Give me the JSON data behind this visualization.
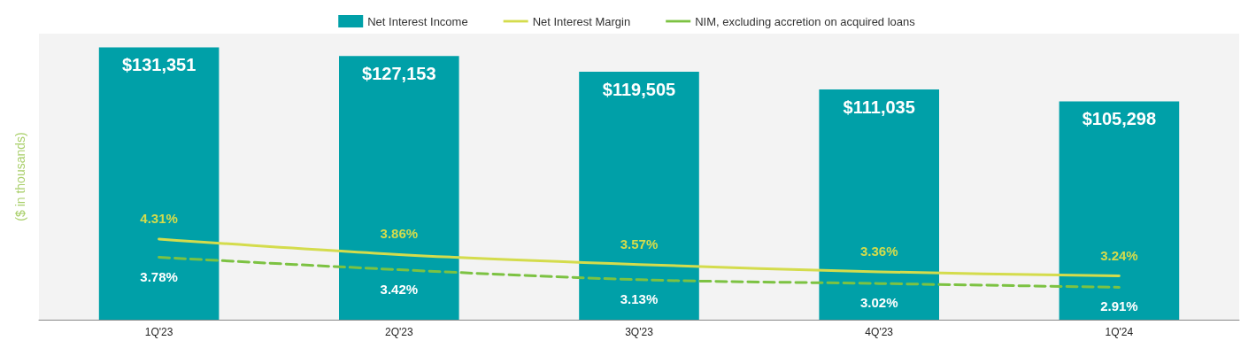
{
  "chart_data": {
    "type": "bar",
    "ylabel": "($ in thousands)",
    "categories": [
      "1Q'23",
      "2Q'23",
      "3Q'23",
      "4Q'23",
      "1Q'24"
    ],
    "series": [
      {
        "name": "Net Interest Income",
        "color": "#00a0a8",
        "values": [
          131351,
          127153,
          119505,
          111035,
          105298
        ],
        "value_labels": [
          "$131,351",
          "$127,153",
          "$119,505",
          "$111,035",
          "$105,298"
        ]
      },
      {
        "name": "Net Interest Margin",
        "type": "line",
        "axis": "y2",
        "color": "#d4dc4c",
        "line_style": "solid",
        "values": [
          4.31,
          3.86,
          3.57,
          3.36,
          3.24
        ],
        "value_labels": [
          "4.31%",
          "3.86%",
          "3.57%",
          "3.36%",
          "3.24%"
        ]
      },
      {
        "name": "NIM, excluding accretion on acquired loans",
        "type": "line",
        "axis": "y2",
        "color": "#7cc242",
        "line_style": "dashed",
        "values": [
          3.78,
          3.42,
          3.13,
          3.02,
          2.91
        ],
        "value_labels": [
          "3.78%",
          "3.42%",
          "3.13%",
          "3.02%",
          "2.91%"
        ]
      }
    ],
    "grid": false,
    "legend": "top",
    "marker": "none"
  }
}
